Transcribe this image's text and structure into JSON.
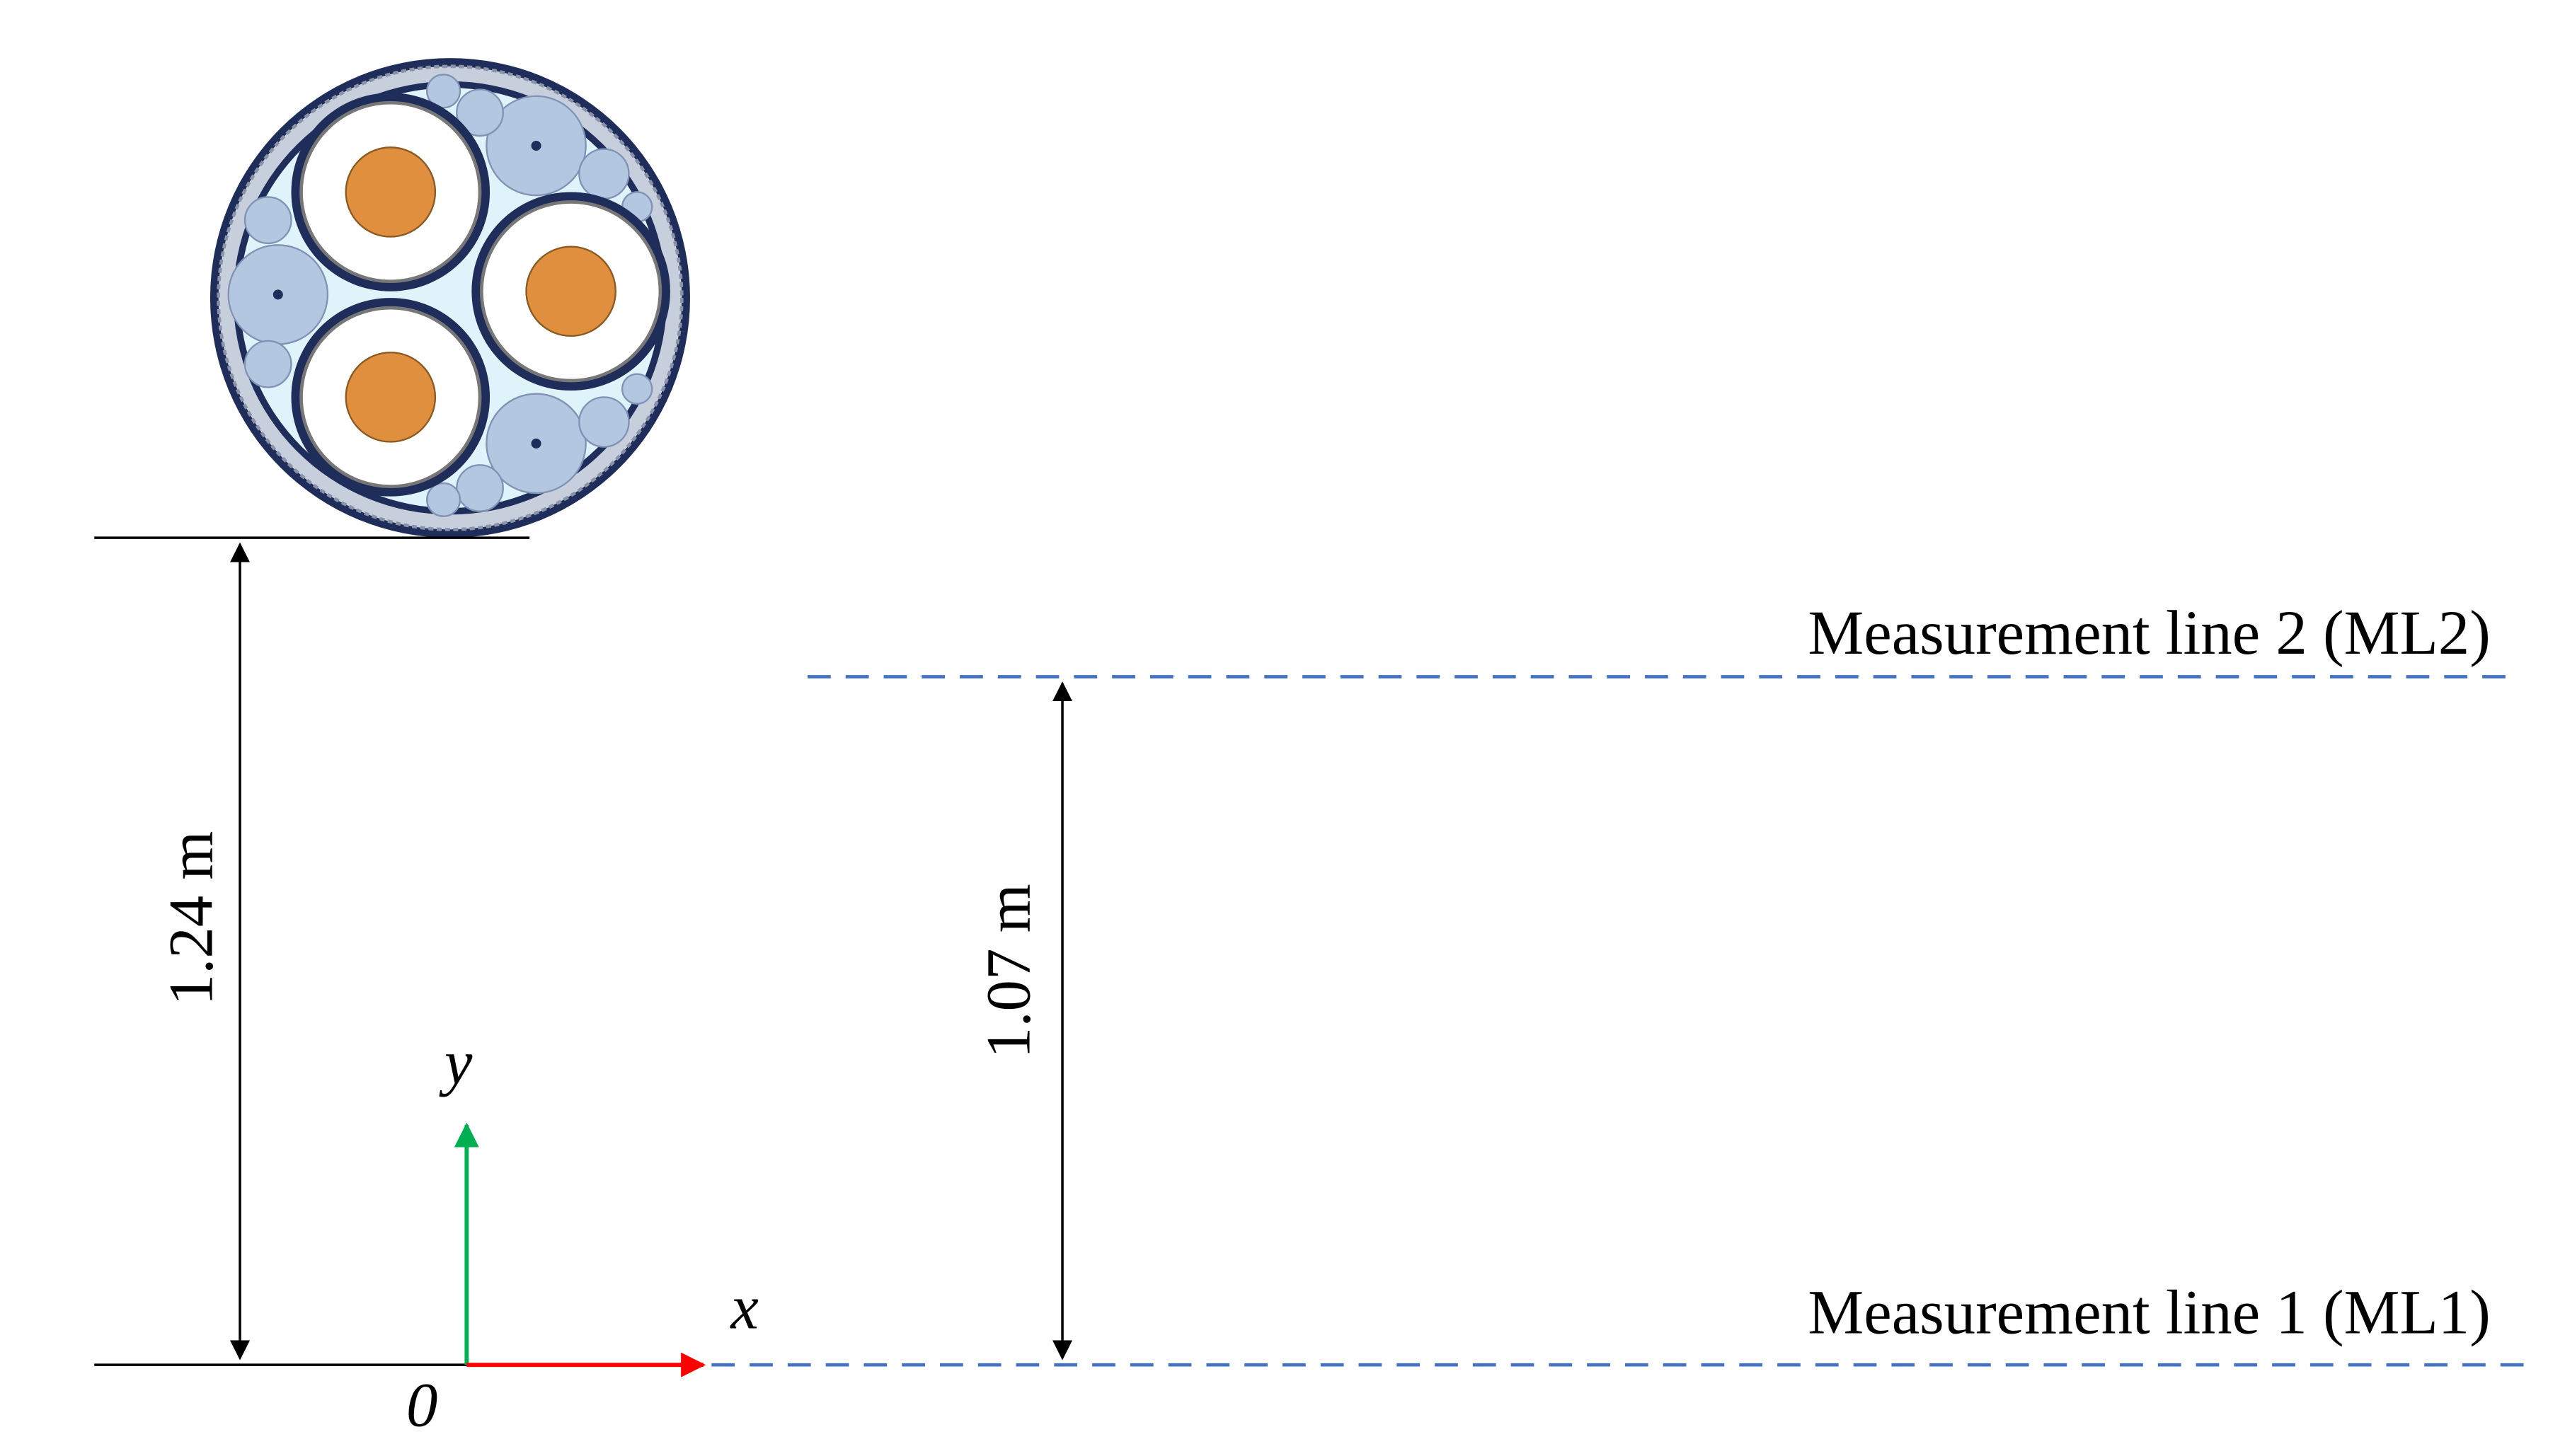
{
  "dimensions": {
    "cable_height": "1.24 m",
    "ml_spacing": "1.07 m"
  },
  "measurement_lines": {
    "ml1": "Measurement line 1 (ML1)",
    "ml2": "Measurement line 2 (ML2)"
  },
  "axes": {
    "x": "x",
    "y": "y",
    "origin": "0"
  }
}
